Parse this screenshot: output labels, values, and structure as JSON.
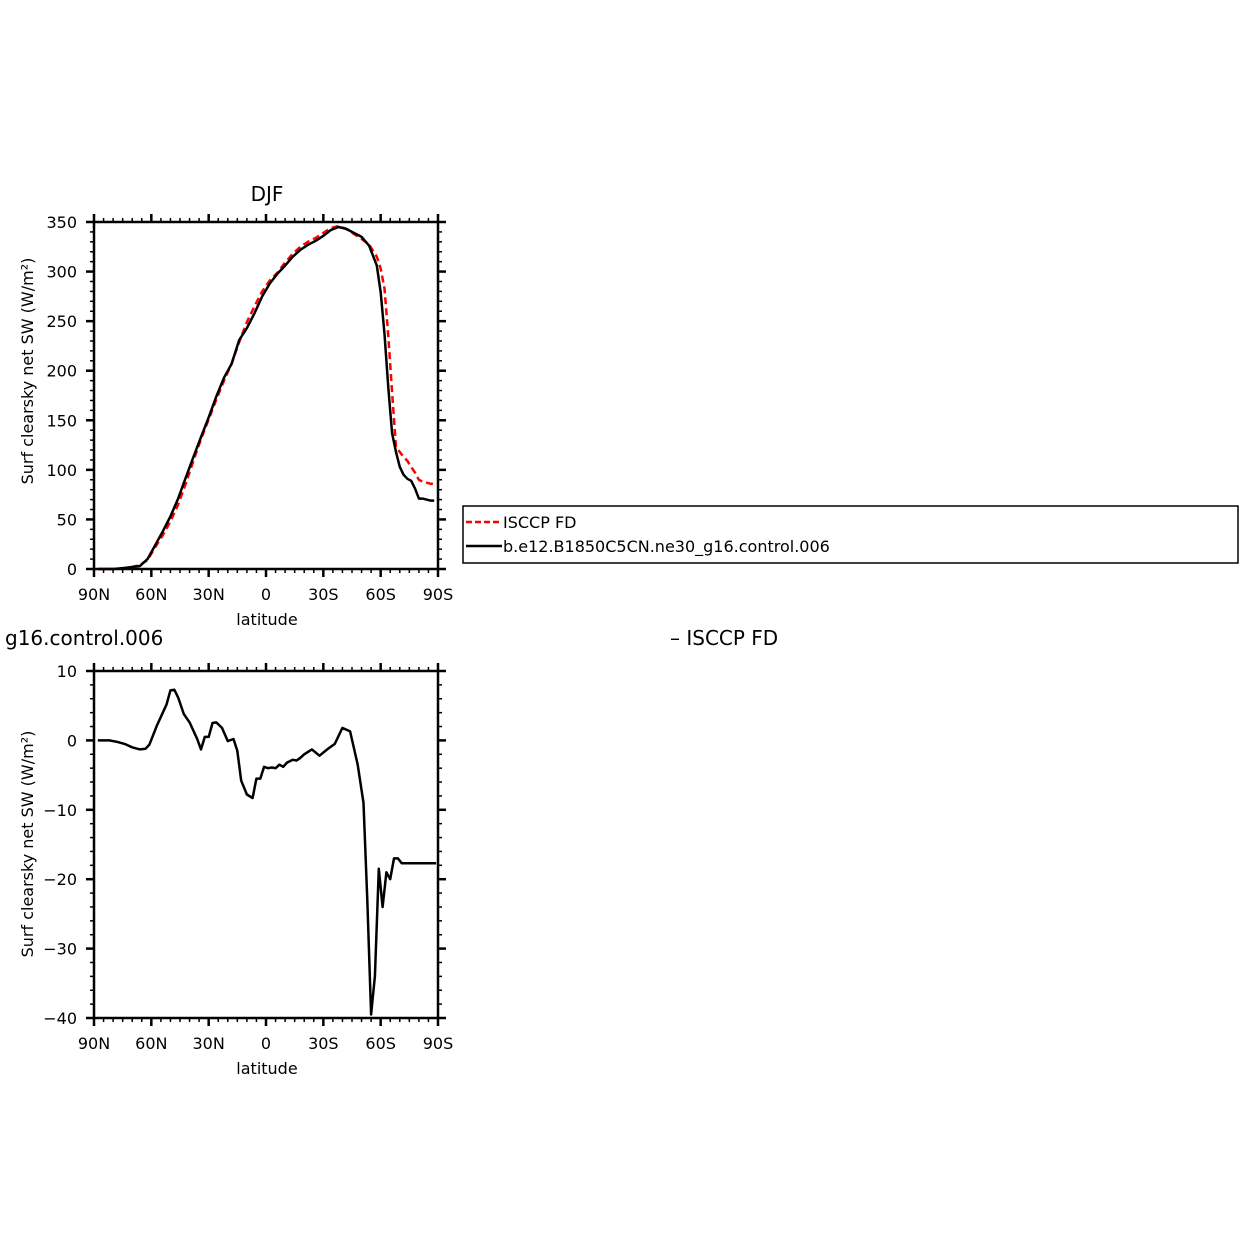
{
  "colors": {
    "obs": "#ff0000",
    "model": "#000000"
  },
  "legend": {
    "entries": [
      {
        "label": "ISCCP FD",
        "color": "#ff0000",
        "dash": "dashed"
      },
      {
        "label": "b.e12.B1850C5CN.ne30_g16.control.006",
        "color": "#000000",
        "dash": "solid"
      }
    ]
  },
  "chart_data": [
    {
      "type": "line",
      "title": "DJF",
      "xlabel": "latitude",
      "ylabel": "Surf clearsky net SW (W/m²)",
      "xlim": [
        90,
        -90
      ],
      "ylim": [
        0,
        350
      ],
      "xticks": [
        90,
        60,
        30,
        0,
        -30,
        -60,
        -90
      ],
      "xtick_labels": [
        "90N",
        "60N",
        "30N",
        "0",
        "30S",
        "60S",
        "90S"
      ],
      "yticks": [
        0,
        50,
        100,
        150,
        200,
        250,
        300,
        350
      ],
      "ytick_labels": [
        "0",
        "50",
        "100",
        "150",
        "200",
        "250",
        "300",
        "350"
      ],
      "grid": false,
      "series": [
        {
          "name": "ISCCP FD",
          "color": "#ff0000",
          "dash": "dashed",
          "x": [
            88,
            80,
            74,
            70,
            66,
            62,
            58,
            54,
            50,
            46,
            42,
            38,
            34,
            30,
            26,
            22,
            18,
            14,
            10,
            6,
            2,
            -2,
            -6,
            -10,
            -14,
            -18,
            -22,
            -26,
            -30,
            -34,
            -38,
            -42,
            -46,
            -50,
            -54,
            -58,
            -60,
            -62,
            -64,
            -66,
            -68,
            -70,
            -72,
            -74,
            -76,
            -78,
            -80,
            -82,
            -84,
            -86,
            -88
          ],
          "y": [
            0,
            0,
            1,
            2,
            4,
            9,
            22,
            34,
            48,
            65,
            86,
            109,
            131,
            151,
            171,
            190,
            207,
            229,
            249,
            265,
            280,
            291,
            299,
            309,
            318,
            325,
            330,
            334,
            339,
            344,
            346,
            343,
            338,
            333,
            327,
            315,
            303,
            283,
            235,
            178,
            123,
            118,
            113,
            109,
            103,
            97,
            90,
            88,
            87,
            86,
            86
          ]
        },
        {
          "name": "b.e12.B1850C5CN.ne30_g16.control.006",
          "color": "#000000",
          "dash": "solid",
          "x": [
            88,
            80,
            74,
            70,
            66,
            62,
            58,
            54,
            50,
            46,
            42,
            38,
            34,
            30,
            26,
            22,
            18,
            14,
            10,
            6,
            2,
            -2,
            -6,
            -10,
            -14,
            -18,
            -22,
            -26,
            -30,
            -34,
            -38,
            -42,
            -46,
            -50,
            -54,
            -58,
            -60,
            -62,
            -64,
            -66,
            -68,
            -70,
            -72,
            -74,
            -76,
            -78,
            -80,
            -82,
            -84,
            -86,
            -88
          ],
          "y": [
            0,
            0,
            1,
            2,
            3,
            10,
            24,
            38,
            53,
            71,
            92,
            113,
            133,
            153,
            174,
            193,
            207,
            231,
            243,
            258,
            275,
            288,
            298,
            306,
            315,
            322,
            327,
            331,
            336,
            342,
            345,
            343,
            339,
            335,
            326,
            306,
            279,
            237,
            183,
            137,
            118,
            103,
            95,
            91,
            89,
            81,
            71,
            71,
            70,
            69,
            69
          ]
        }
      ]
    },
    {
      "type": "line",
      "title": "g16.control.006",
      "subtitle": "– ISCCP FD",
      "xlabel": "latitude",
      "ylabel": "Surf clearsky net SW (W/m²)",
      "xlim": [
        90,
        -90
      ],
      "ylim": [
        -40,
        10
      ],
      "xticks": [
        90,
        60,
        30,
        0,
        -30,
        -60,
        -90
      ],
      "xtick_labels": [
        "90N",
        "60N",
        "30N",
        "0",
        "30S",
        "60S",
        "90S"
      ],
      "yticks": [
        -40,
        -30,
        -20,
        -10,
        0,
        10
      ],
      "ytick_labels": [
        "−40",
        "−30",
        "−20",
        "−10",
        "0",
        "10"
      ],
      "grid": false,
      "series": [
        {
          "color": "#000000",
          "dash": "solid",
          "x": [
            88,
            82,
            78,
            74,
            70,
            66,
            63,
            61,
            57,
            52,
            50,
            48,
            46,
            43,
            40,
            36,
            34,
            32,
            30,
            28,
            26,
            23,
            20,
            17,
            15,
            13,
            10,
            7,
            5,
            3,
            1,
            -1,
            -3,
            -5,
            -7,
            -9,
            -11,
            -14,
            -16,
            -18,
            -20,
            -24,
            -28,
            -32,
            -36,
            -40,
            -44,
            -48,
            -51,
            -53,
            -55,
            -57,
            -59,
            -61,
            -63,
            -65,
            -67,
            -69,
            -71,
            -73,
            -75,
            -77,
            -79,
            -81,
            -83,
            -85,
            -87,
            -89
          ],
          "y": [
            0,
            0,
            -0.2,
            -0.5,
            -1,
            -1.3,
            -1.2,
            -0.6,
            2.2,
            5.2,
            7.2,
            7.3,
            6.2,
            3.8,
            2.6,
            0.2,
            -1.3,
            0.5,
            0.5,
            2.5,
            2.6,
            1.8,
            -0.1,
            0.2,
            -1.5,
            -5.8,
            -7.8,
            -8.3,
            -5.5,
            -5.5,
            -3.8,
            -4,
            -3.9,
            -4,
            -3.5,
            -3.8,
            -3.2,
            -2.8,
            -2.9,
            -2.5,
            -2,
            -1.3,
            -2.2,
            -1.3,
            -0.5,
            1.8,
            1.3,
            -3.5,
            -9,
            -23,
            -39.5,
            -34,
            -18.5,
            -24,
            -19,
            -20,
            -17,
            -17,
            -17.7,
            -17.7,
            -17.7,
            -17.7,
            -17.7,
            -17.7,
            -17.7,
            -17.7,
            -17.7,
            -17.7
          ]
        }
      ]
    }
  ]
}
